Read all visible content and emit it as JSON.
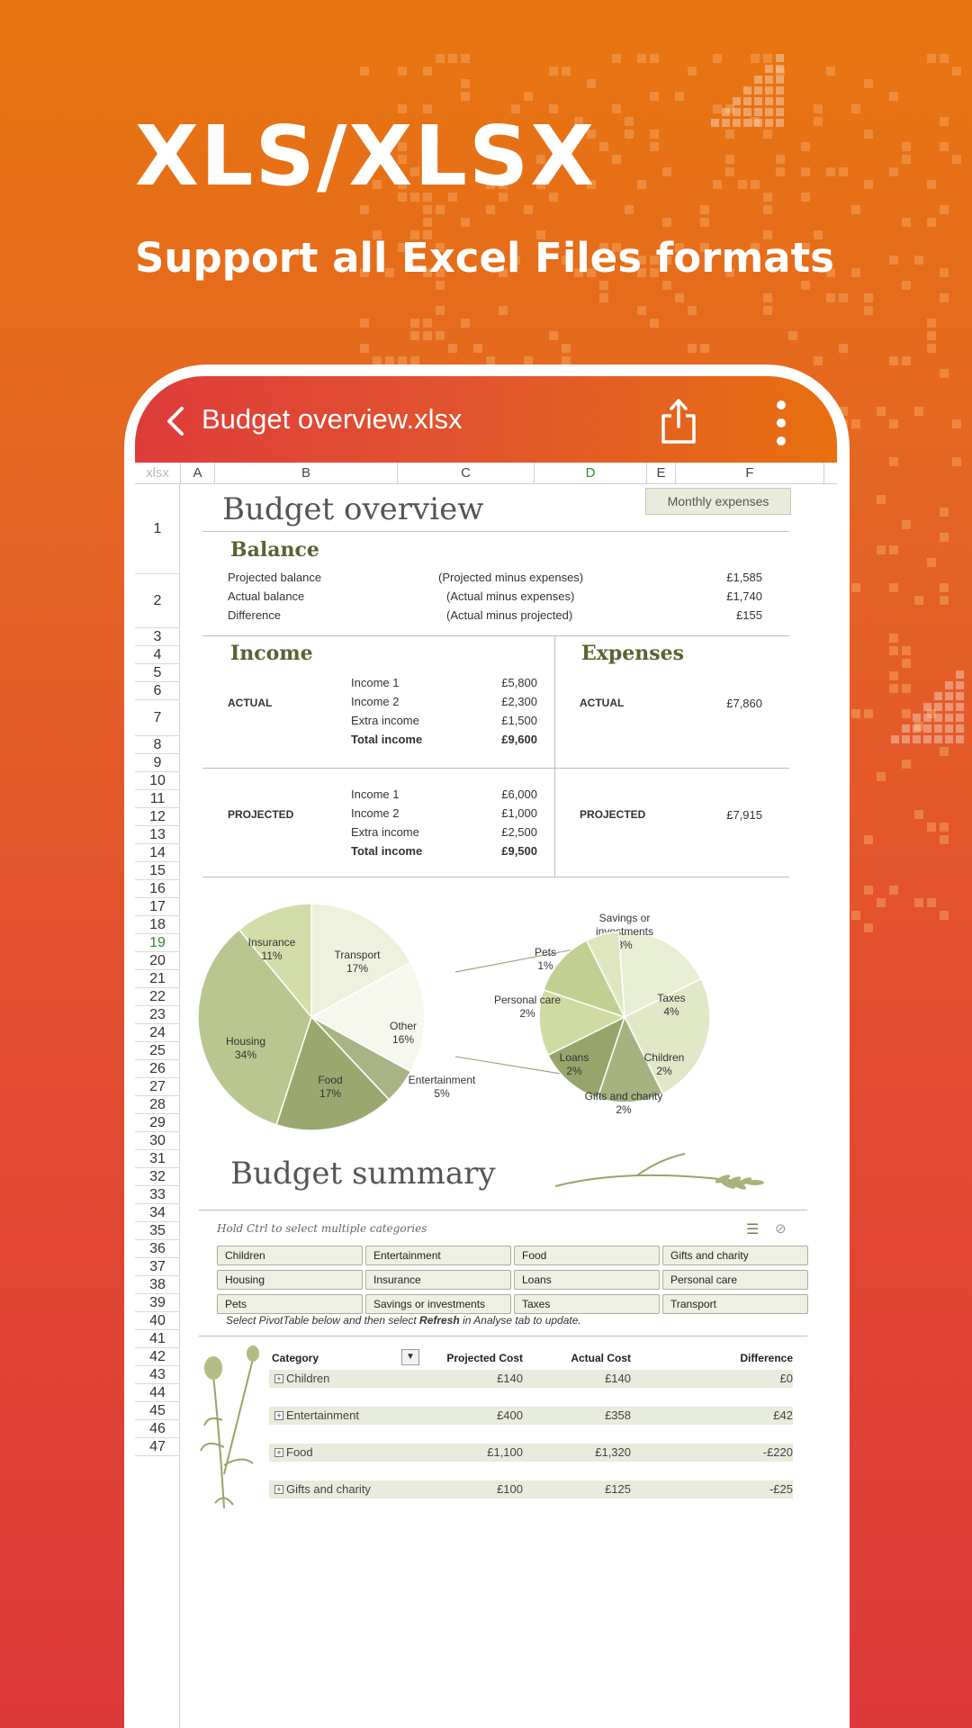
{
  "hero": {
    "title": "XLS/XLSX",
    "subtitle": "Support all Excel Files formats"
  },
  "appbar": {
    "title": "Budget overview.xlsx",
    "back_icon": "chevron-left-icon",
    "share_icon": "share-icon",
    "more_icon": "more-vertical-icon"
  },
  "sheet": {
    "corner_label": "xlsx",
    "columns": [
      "A",
      "B",
      "C",
      "D",
      "E",
      "F"
    ],
    "active_column": "D",
    "active_row": "19",
    "rows": [
      "1",
      "2",
      "3",
      "4",
      "5",
      "6",
      "7",
      "8",
      "9",
      "10",
      "11",
      "12",
      "13",
      "14",
      "15",
      "16",
      "17",
      "18",
      "19",
      "20",
      "21",
      "22",
      "23",
      "24",
      "25",
      "26",
      "27",
      "28",
      "29",
      "30",
      "31",
      "32",
      "33",
      "34",
      "35",
      "36",
      "37",
      "38",
      "39",
      "40",
      "41",
      "42",
      "43",
      "44",
      "45",
      "46",
      "47"
    ]
  },
  "overview": {
    "title": "Budget overview",
    "monthly_button": "Monthly expenses",
    "balance": {
      "heading": "Balance",
      "rows": [
        {
          "label": "Projected balance",
          "note": "(Projected minus expenses)",
          "value": "£1,585"
        },
        {
          "label": "Actual balance",
          "note": "(Actual minus expenses)",
          "value": "£1,740"
        },
        {
          "label": "Difference",
          "note": "(Actual minus projected)",
          "value": "£155"
        }
      ]
    },
    "income": {
      "heading": "Income",
      "actual_label": "ACTUAL",
      "actual_rows": [
        {
          "label": "Income 1",
          "value": "£5,800"
        },
        {
          "label": "Income 2",
          "value": "£2,300"
        },
        {
          "label": "Extra income",
          "value": "£1,500"
        },
        {
          "label": "Total income",
          "value": "£9,600"
        }
      ],
      "projected_label": "PROJECTED",
      "projected_rows": [
        {
          "label": "Income 1",
          "value": "£6,000"
        },
        {
          "label": "Income 2",
          "value": "£1,000"
        },
        {
          "label": "Extra income",
          "value": "£2,500"
        },
        {
          "label": "Total income",
          "value": "£9,500"
        }
      ]
    },
    "expenses": {
      "heading": "Expenses",
      "actual_label": "ACTUAL",
      "actual_value": "£7,860",
      "projected_label": "PROJECTED",
      "projected_value": "£7,915"
    }
  },
  "chart_data": {
    "type": "pie",
    "main": {
      "slices": [
        {
          "label": "Transport",
          "value": 17
        },
        {
          "label": "Other",
          "value": 16
        },
        {
          "label": "Entertainment",
          "value": 5
        },
        {
          "label": "Food",
          "value": 17
        },
        {
          "label": "Housing",
          "value": 34
        },
        {
          "label": "Insurance",
          "value": 11
        }
      ]
    },
    "breakdown": {
      "slices": [
        {
          "label": "Savings or investments",
          "value": 3
        },
        {
          "label": "Taxes",
          "value": 4
        },
        {
          "label": "Children",
          "value": 2
        },
        {
          "label": "Gifts and charity",
          "value": 2
        },
        {
          "label": "Loans",
          "value": 2
        },
        {
          "label": "Personal care",
          "value": 2
        },
        {
          "label": "Pets",
          "value": 1
        }
      ]
    }
  },
  "summary": {
    "title": "Budget summary",
    "hint": "Hold Ctrl to select multiple categories",
    "categories": [
      "Children",
      "Entertainment",
      "Food",
      "Gifts and charity",
      "Housing",
      "Insurance",
      "Loans",
      "Personal care",
      "Pets",
      "Savings or investments",
      "Taxes",
      "Transport"
    ],
    "refresh_prefix": "Select PivotTable below and then select",
    "refresh_word": "Refresh",
    "refresh_suffix": "in Analyse tab to update.",
    "pivot": {
      "headers": [
        "Category",
        "Projected Cost",
        "Actual Cost",
        "Difference"
      ],
      "rows": [
        {
          "category": "Children",
          "projected": "£140",
          "actual": "£140",
          "diff": "£0"
        },
        {
          "category": "Entertainment",
          "projected": "£400",
          "actual": "£358",
          "diff": "£42"
        },
        {
          "category": "Food",
          "projected": "£1,100",
          "actual": "£1,320",
          "diff": "-£220"
        },
        {
          "category": "Gifts and charity",
          "projected": "£100",
          "actual": "£125",
          "diff": "-£25"
        }
      ]
    }
  }
}
